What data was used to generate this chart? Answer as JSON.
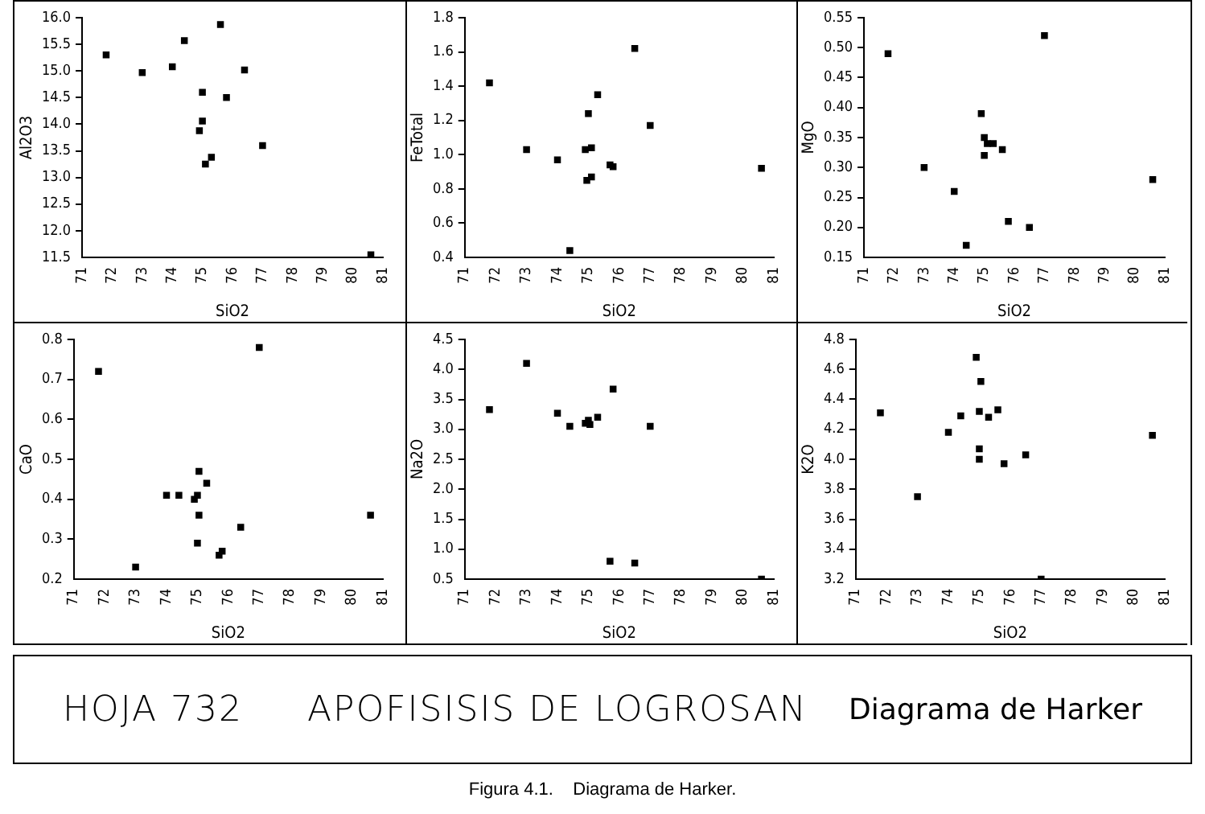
{
  "chart_data": [
    {
      "type": "scatter",
      "xlabel": "SiO2",
      "ylabel": "Al2O3",
      "color": "#000000",
      "marker": "square",
      "grid": false,
      "legend": false,
      "xlim": [
        71,
        81
      ],
      "xticks": [
        71,
        72,
        73,
        74,
        75,
        76,
        77,
        78,
        79,
        80,
        81
      ],
      "ylim": [
        11.5,
        16
      ],
      "yticks": [
        {
          "value": 11.5,
          "label": "11.5"
        },
        {
          "value": 12,
          "label": "12.0"
        },
        {
          "value": 12.5,
          "label": "12.5"
        },
        {
          "value": 13,
          "label": "13.0"
        },
        {
          "value": 13.5,
          "label": "13.5"
        },
        {
          "value": 14,
          "label": "14.0"
        },
        {
          "value": 14.5,
          "label": "14.5"
        },
        {
          "value": 15,
          "label": "15.0"
        },
        {
          "value": 15.5,
          "label": "15.5"
        },
        {
          "value": 16,
          "label": "16.0"
        }
      ],
      "x": [
        71.8,
        73.0,
        74.0,
        74.4,
        75.0,
        75.6,
        75.8,
        76.4,
        75.0,
        74.9,
        75.1,
        75.3,
        77.0,
        80.6
      ],
      "values": [
        15.3,
        14.97,
        15.08,
        15.57,
        14.6,
        15.87,
        14.5,
        15.02,
        14.06,
        13.88,
        13.25,
        13.38,
        13.6,
        11.55
      ]
    },
    {
      "type": "scatter",
      "xlabel": "SiO2",
      "ylabel": "FeTotal",
      "color": "#000000",
      "marker": "square",
      "grid": false,
      "legend": false,
      "xlim": [
        71,
        81
      ],
      "xticks": [
        71,
        72,
        73,
        74,
        75,
        76,
        77,
        78,
        79,
        80,
        81
      ],
      "ylim": [
        0.4,
        1.8
      ],
      "yticks": [
        0.4,
        0.6,
        0.8,
        {
          "value": 1,
          "label": "1.0"
        },
        1.2,
        1.4,
        1.6,
        1.8
      ],
      "x": [
        71.8,
        73.0,
        74.0,
        74.4,
        74.9,
        75.0,
        75.1,
        75.3,
        75.1,
        74.95,
        75.7,
        75.8,
        76.5,
        77.0,
        80.6
      ],
      "values": [
        1.42,
        1.03,
        0.97,
        0.44,
        1.03,
        1.24,
        1.04,
        1.35,
        0.87,
        0.85,
        0.94,
        0.93,
        1.62,
        1.17,
        0.92
      ]
    },
    {
      "type": "scatter",
      "xlabel": "SiO2",
      "ylabel": "MgO",
      "color": "#000000",
      "marker": "square",
      "grid": false,
      "legend": false,
      "xlim": [
        71,
        81
      ],
      "xticks": [
        71,
        72,
        73,
        74,
        75,
        76,
        77,
        78,
        79,
        80,
        81
      ],
      "ylim": [
        0.15,
        0.55
      ],
      "yticks": [
        0.15,
        {
          "value": 0.2,
          "label": "0.20"
        },
        0.25,
        {
          "value": 0.3,
          "label": "0.30"
        },
        0.35,
        {
          "value": 0.4,
          "label": "0.40"
        },
        0.45,
        {
          "value": 0.5,
          "label": "0.50"
        },
        0.55
      ],
      "x": [
        71.8,
        73.0,
        74.0,
        74.4,
        74.9,
        75.0,
        75.1,
        75.3,
        75.0,
        75.6,
        75.8,
        76.5,
        77.0,
        80.6
      ],
      "values": [
        0.49,
        0.3,
        0.26,
        0.17,
        0.39,
        0.35,
        0.34,
        0.34,
        0.32,
        0.33,
        0.21,
        0.2,
        0.52,
        0.28
      ]
    },
    {
      "type": "scatter",
      "xlabel": "SiO2",
      "ylabel": "CaO",
      "color": "#000000",
      "marker": "square",
      "grid": false,
      "legend": false,
      "xlim": [
        71,
        81
      ],
      "xticks": [
        71,
        72,
        73,
        74,
        75,
        76,
        77,
        78,
        79,
        80,
        81
      ],
      "ylim": [
        0.2,
        0.8
      ],
      "yticks": [
        0.2,
        0.3,
        0.4,
        0.5,
        0.6,
        0.7,
        0.8
      ],
      "x": [
        71.8,
        73.0,
        74.0,
        74.4,
        74.9,
        75.0,
        75.05,
        75.3,
        75.05,
        75.0,
        75.7,
        75.8,
        76.4,
        77.0,
        80.6
      ],
      "values": [
        0.72,
        0.23,
        0.41,
        0.41,
        0.4,
        0.41,
        0.47,
        0.44,
        0.36,
        0.29,
        0.26,
        0.27,
        0.33,
        0.78,
        0.36
      ]
    },
    {
      "type": "scatter",
      "xlabel": "SiO2",
      "ylabel": "Na2O",
      "color": "#000000",
      "marker": "square",
      "grid": false,
      "legend": false,
      "xlim": [
        71,
        81
      ],
      "xticks": [
        71,
        72,
        73,
        74,
        75,
        76,
        77,
        78,
        79,
        80,
        81
      ],
      "ylim": [
        0.5,
        4.5
      ],
      "yticks": [
        0.5,
        {
          "value": 1,
          "label": "1.0"
        },
        1.5,
        {
          "value": 2,
          "label": "2.0"
        },
        2.5,
        {
          "value": 3,
          "label": "3.0"
        },
        3.5,
        {
          "value": 4,
          "label": "4.0"
        },
        4.5
      ],
      "x": [
        71.8,
        73.0,
        74.0,
        74.4,
        74.9,
        75.0,
        75.05,
        75.3,
        75.7,
        75.8,
        76.5,
        77.0,
        80.6
      ],
      "values": [
        3.33,
        4.1,
        3.27,
        3.05,
        3.1,
        3.15,
        3.08,
        3.2,
        0.8,
        3.67,
        0.77,
        3.05,
        0.5
      ]
    },
    {
      "type": "scatter",
      "xlabel": "SiO2",
      "ylabel": "K2O",
      "color": "#000000",
      "marker": "square",
      "grid": false,
      "legend": false,
      "xlim": [
        71,
        81
      ],
      "xticks": [
        71,
        72,
        73,
        74,
        75,
        76,
        77,
        78,
        79,
        80,
        81
      ],
      "ylim": [
        3.2,
        4.8
      ],
      "yticks": [
        3.2,
        3.4,
        3.6,
        3.8,
        {
          "value": 4,
          "label": "4.0"
        },
        4.2,
        4.4,
        4.6,
        4.8
      ],
      "x": [
        71.8,
        73.0,
        74.0,
        74.4,
        74.9,
        75.05,
        75.0,
        75.3,
        75.0,
        75.0,
        75.6,
        75.8,
        76.5,
        77.0,
        80.6
      ],
      "values": [
        4.31,
        3.75,
        4.18,
        4.29,
        4.68,
        4.52,
        4.32,
        4.28,
        4.07,
        4.0,
        4.33,
        3.97,
        4.03,
        3.2,
        4.16
      ]
    },
    {
      "type": "other",
      "annotations": [
        "HOJA 732",
        "APOFISISIS DE LOGROSAN",
        "Diagrama de Harker",
        "Figura 4.1.    Diagrama de Harker."
      ]
    }
  ]
}
